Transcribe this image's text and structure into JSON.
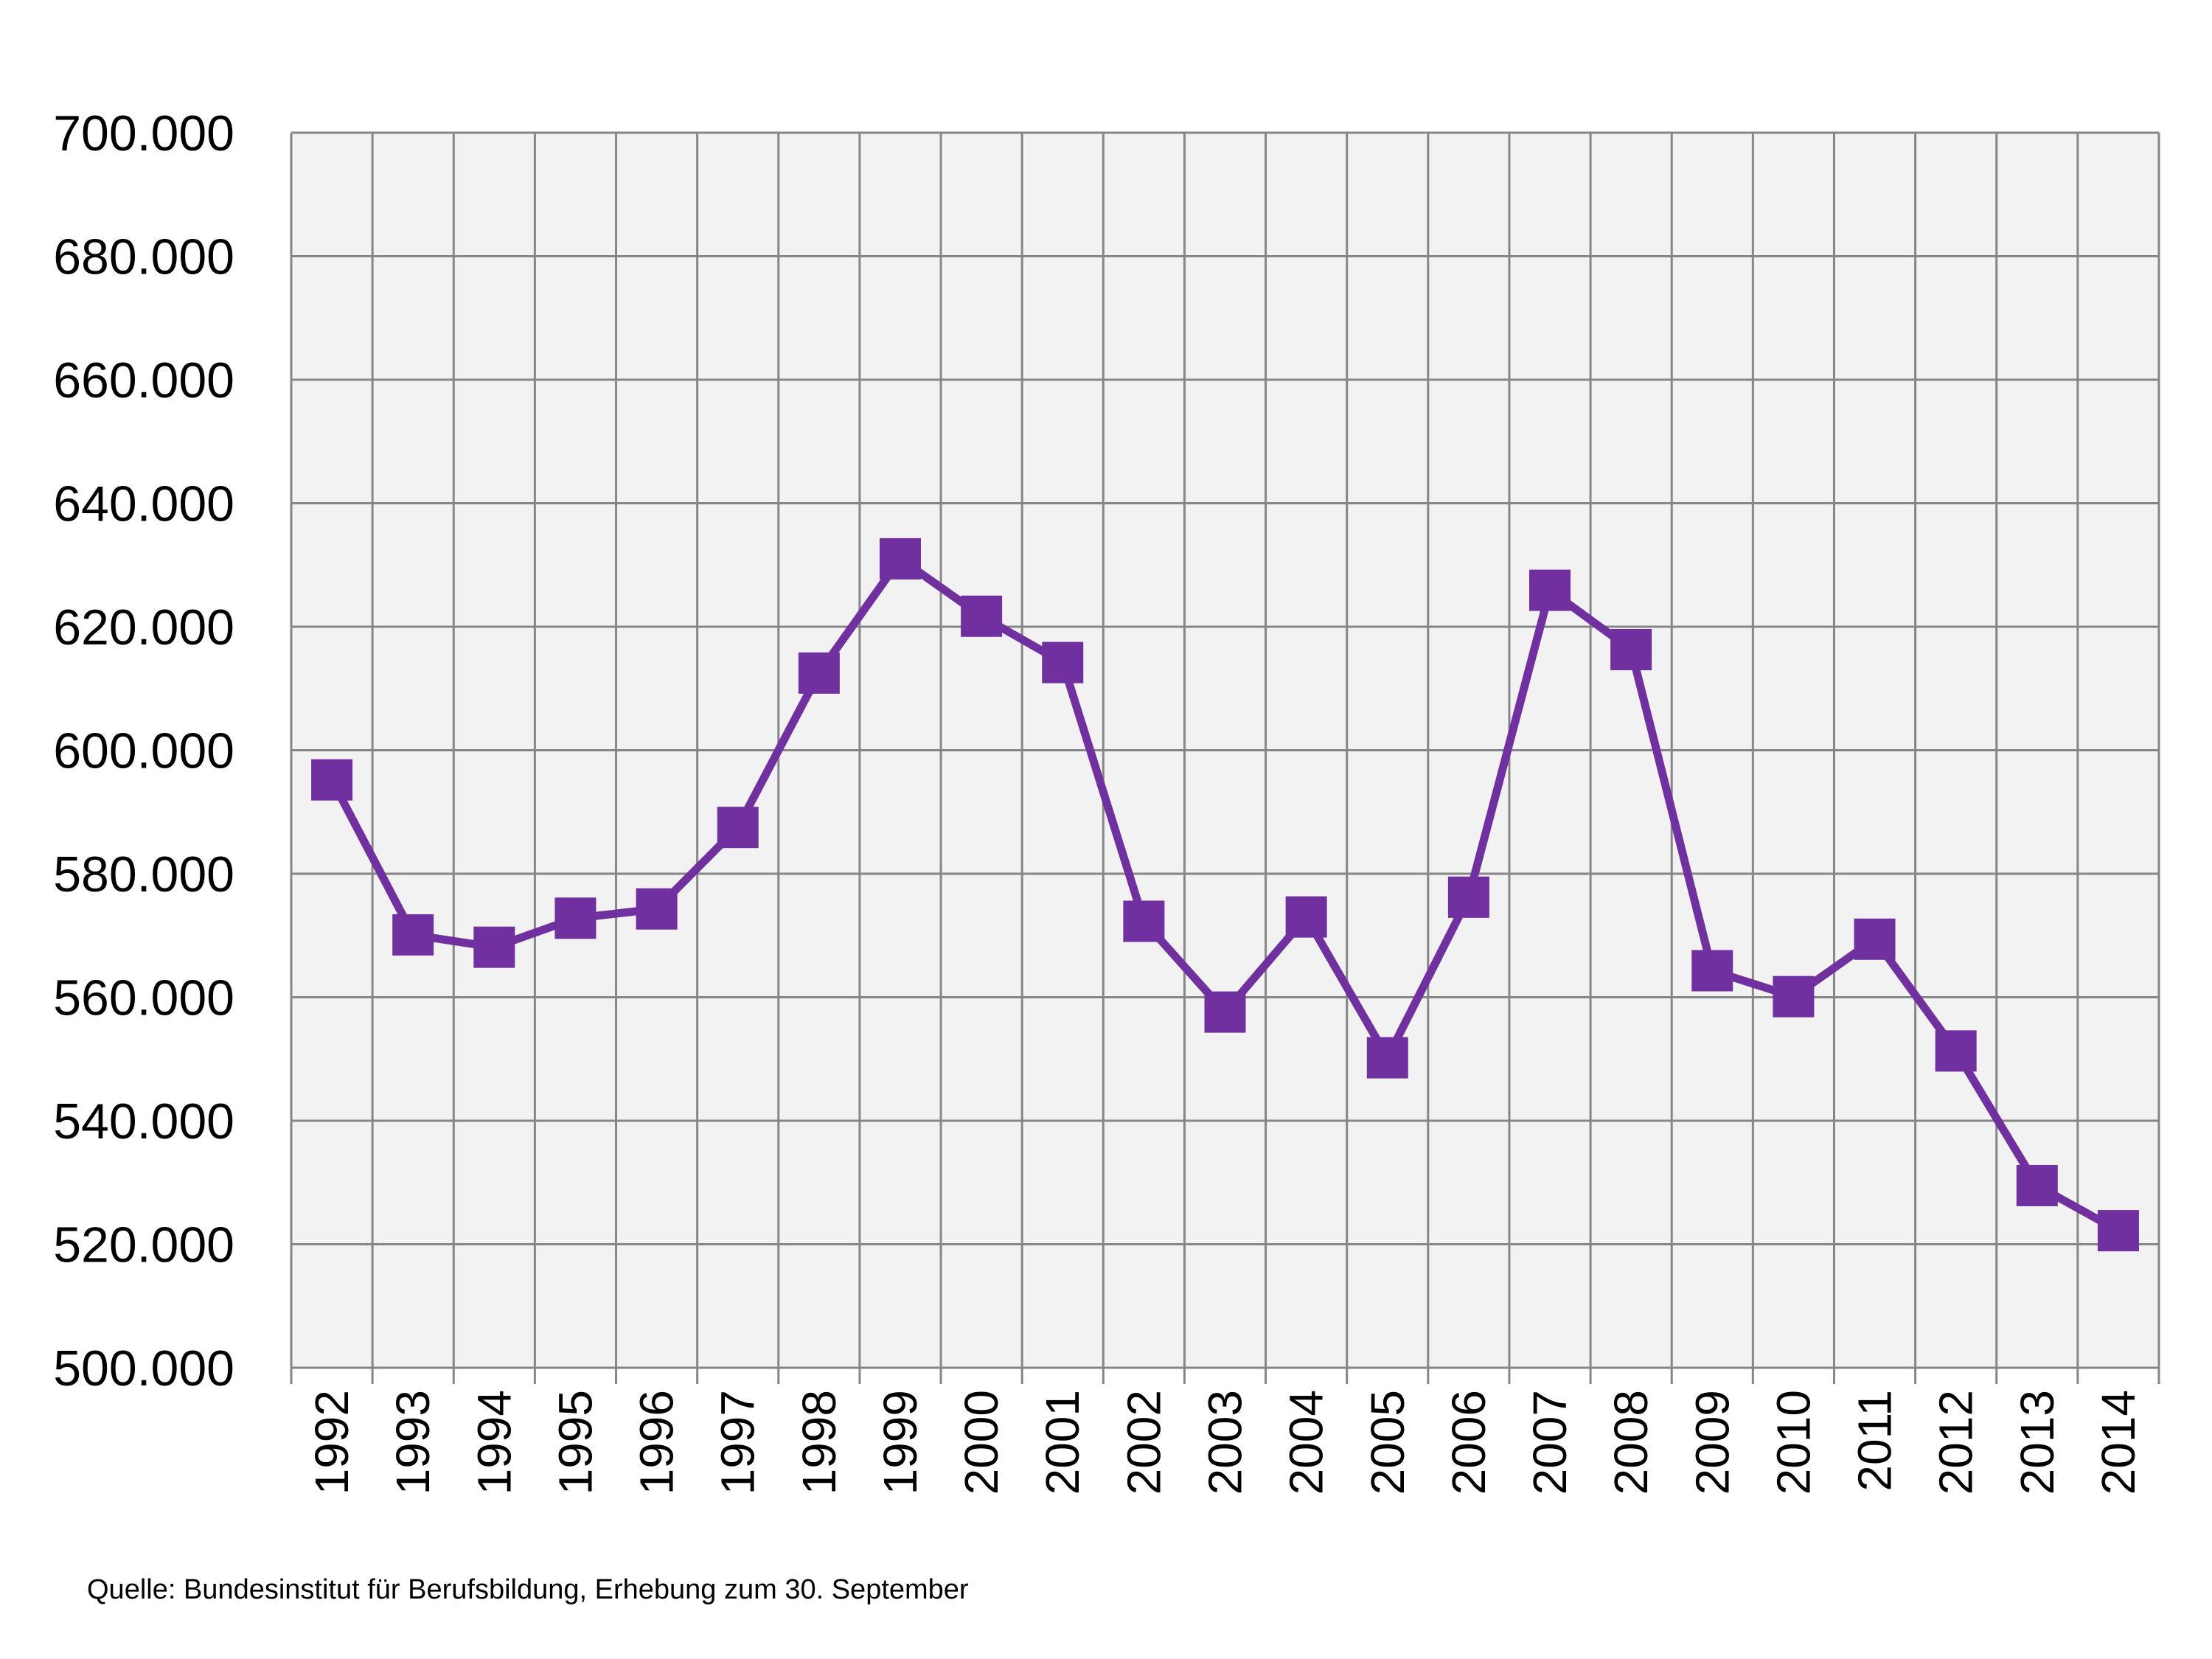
{
  "chart_data": {
    "type": "line",
    "title": "",
    "xlabel": "",
    "ylabel": "",
    "categories": [
      "1992",
      "1993",
      "1994",
      "1995",
      "1996",
      "1997",
      "1998",
      "1999",
      "2000",
      "2001",
      "2002",
      "2003",
      "2004",
      "2005",
      "2006",
      "2007",
      "2008",
      "2009",
      "2010",
      "2011",
      "2012",
      "2013",
      "2014"
    ],
    "series": [
      {
        "values": [
          595200,
          570100,
          568100,
          572800,
          574300,
          587500,
          612500,
          631000,
          621700,
          614200,
          572300,
          557600,
          573000,
          550200,
          576200,
          625900,
          616300,
          564300,
          560100,
          569400,
          551300,
          529500,
          522200
        ]
      }
    ],
    "ylim": [
      500000,
      700000
    ],
    "y_ticks": [
      500000,
      520000,
      540000,
      560000,
      580000,
      600000,
      620000,
      640000,
      660000,
      680000,
      700000
    ],
    "y_tick_labels": [
      "500.000",
      "520.000",
      "540.000",
      "560.000",
      "580.000",
      "600.000",
      "620.000",
      "640.000",
      "660.000",
      "680.000",
      "700.000"
    ],
    "grid": true,
    "marker": "square",
    "legend": "none",
    "colors": {
      "series": "#7030a0",
      "plot_background": "#f2f2f2",
      "grid": "#868686"
    }
  },
  "footer": {
    "source": "Quelle: Bundesinstitut für Berufsbildung, Erhebung zum 30. September"
  }
}
